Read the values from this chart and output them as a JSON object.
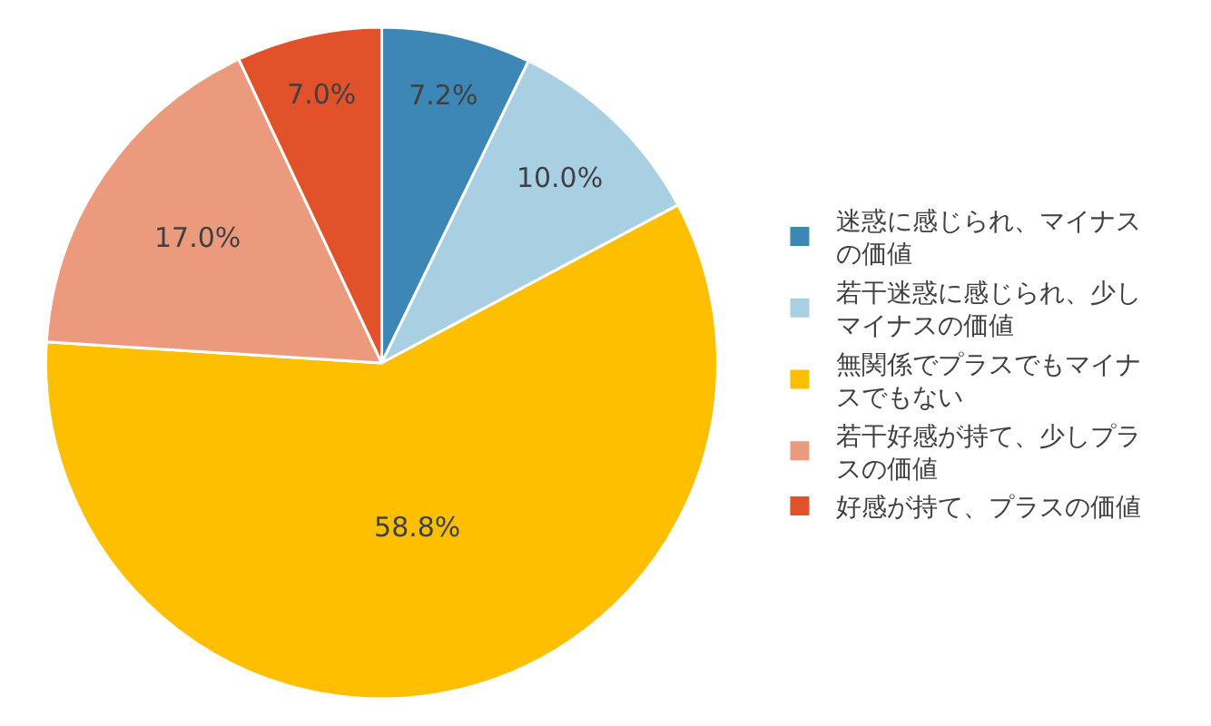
{
  "chart_data": {
    "type": "pie",
    "categories": [
      "迷惑に感じられ、マイナスの価値",
      "若干迷惑に感じられ、少しマイナスの価値",
      "無関係でプラスでもマイナスでもない",
      "若干好感が持て、少しプラスの価値",
      "好感が持て、プラスの価値"
    ],
    "values": [
      7.2,
      10.0,
      58.8,
      17.0,
      7.0
    ],
    "colors": [
      "#3c87b5",
      "#a9cfe3",
      "#fdbf00",
      "#ec9a7e",
      "#e2522a"
    ],
    "value_labels": [
      "7.2%",
      "10.0%",
      "58.8%",
      "17.0%",
      "7.0%"
    ],
    "legend": "right"
  }
}
